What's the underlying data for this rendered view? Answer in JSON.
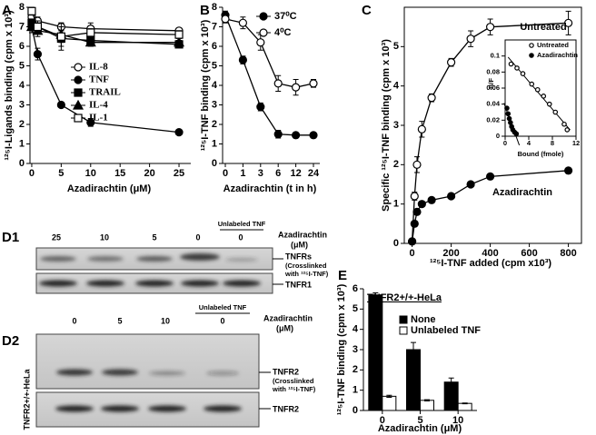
{
  "chart_data": [
    {
      "type": "line",
      "panel": "A",
      "y_label": "¹²⁵I-Ligands binding (cpm x 10³)",
      "x_label": "Azadirachtin (μM)",
      "x": [
        0,
        1,
        5,
        10,
        25
      ],
      "xlim": [
        -0.3,
        27
      ],
      "xticks": [
        0,
        5,
        10,
        15,
        20,
        25
      ],
      "ylim": [
        0,
        8
      ],
      "yticks": [
        0,
        1,
        2,
        3,
        4,
        5,
        6,
        7,
        8
      ],
      "legend": "center",
      "series": [
        {
          "name": "IL-8",
          "color": "#000000",
          "marker": "circle",
          "filled": false,
          "values": [
            7.5,
            7.3,
            7.0,
            6.9,
            6.8
          ],
          "errors": [
            0.3,
            0.2,
            0.2,
            0.3,
            0.1
          ]
        },
        {
          "name": "TNF",
          "color": "#000000",
          "marker": "circle",
          "filled": true,
          "values": [
            7.0,
            5.6,
            3.0,
            2.1,
            1.6
          ],
          "errors": [
            0.3,
            0.3,
            0.1,
            0.2,
            0.1
          ]
        },
        {
          "name": "TRAIL",
          "color": "#000000",
          "marker": "square",
          "filled": true,
          "values": [
            7.2,
            7.0,
            6.4,
            6.3,
            6.1
          ],
          "errors": [
            0.2,
            0.2,
            0.6,
            0.3,
            0.1
          ]
        },
        {
          "name": "IL-4",
          "color": "#000000",
          "marker": "triangle",
          "filled": true,
          "values": [
            7.0,
            6.8,
            6.6,
            6.2,
            6.2
          ],
          "errors": [
            0.2,
            0.3,
            0.6,
            0.2,
            0.1
          ]
        },
        {
          "name": "IL-1",
          "color": "#000000",
          "marker": "square",
          "filled": false,
          "values": [
            7.8,
            7.0,
            6.5,
            6.7,
            6.6
          ],
          "errors": [
            0.2,
            0.3,
            0.3,
            0.2,
            0.2
          ]
        }
      ]
    },
    {
      "type": "line",
      "panel": "B",
      "y_label": "¹²⁵I-TNF binding (cpm x 10³)",
      "x_label": "Azadirachtin (t in h)",
      "categories": [
        "0",
        "1",
        "3",
        "6",
        "12",
        "24"
      ],
      "ylim": [
        0,
        8
      ],
      "yticks": [
        0,
        1,
        2,
        3,
        4,
        5,
        6,
        7,
        8
      ],
      "legend": "top-right",
      "series": [
        {
          "name": "37⁰C",
          "color": "#000000",
          "marker": "circle",
          "filled": true,
          "values": [
            7.6,
            5.3,
            2.9,
            1.5,
            1.45,
            1.45
          ],
          "errors": [
            0.2,
            0.2,
            0.2,
            0.2,
            0.1,
            0.1
          ]
        },
        {
          "name": "4⁰C",
          "color": "#000000",
          "marker": "circle",
          "filled": false,
          "values": [
            7.4,
            7.2,
            6.2,
            4.1,
            3.9,
            4.1
          ],
          "errors": [
            0.2,
            0.3,
            0.4,
            0.4,
            0.4,
            0.2
          ]
        }
      ]
    },
    {
      "type": "line",
      "panel": "C",
      "y_label": "Specific ¹²⁵I-TNF binding (cpm x 10³)",
      "x_label": "¹²⁵I-TNF added (cpm x10³)",
      "x": [
        0,
        12.5,
        25,
        50,
        100,
        200,
        300,
        400,
        800
      ],
      "xlim": [
        -40,
        867
      ],
      "xticks": [
        0,
        200,
        400,
        600,
        800
      ],
      "ylim": [
        0,
        6
      ],
      "yticks": [
        0,
        1,
        2,
        3,
        4,
        5
      ],
      "annotations": [
        "Untreated",
        "Azadirachtin"
      ],
      "series": [
        {
          "name": "Untreated",
          "color": "#000000",
          "marker": "circle",
          "filled": false,
          "values": [
            0.05,
            1.2,
            2.0,
            2.9,
            3.7,
            4.6,
            5.2,
            5.5,
            5.6
          ],
          "errors": [
            0,
            0.1,
            0.2,
            0.2,
            0.1,
            0.1,
            0.2,
            0.2,
            0.3
          ]
        },
        {
          "name": "Azadirachtin",
          "color": "#000000",
          "marker": "circle",
          "filled": true,
          "values": [
            0.05,
            0.5,
            0.8,
            1.0,
            1.1,
            1.2,
            1.5,
            1.7,
            1.85
          ]
        }
      ]
    },
    {
      "type": "scatter",
      "y_label": "B/F",
      "x_label": "Bound (fmole)",
      "xlim": [
        0,
        12
      ],
      "xticks": [
        0,
        4,
        8,
        12
      ],
      "ylim": [
        0,
        0.12
      ],
      "yticks": [
        0,
        0.02,
        0.04,
        0.06,
        0.08,
        0.1
      ],
      "legend": "top-right",
      "trendline": true,
      "series": [
        {
          "name": "Untreated",
          "color": "#000000",
          "marker": "circle",
          "filled": false,
          "x": [
            1,
            2,
            3,
            4.5,
            5.5,
            6.5,
            7.5,
            8.5,
            10,
            10.5
          ],
          "values": [
            0.09,
            0.085,
            0.078,
            0.065,
            0.058,
            0.05,
            0.04,
            0.03,
            0.015,
            0.008
          ]
        },
        {
          "name": "Azadirachtin",
          "color": "#000000",
          "marker": "circle",
          "filled": true,
          "x": [
            0.3,
            0.5,
            0.7,
            0.9,
            1.1,
            1.3,
            1.6,
            1.9
          ],
          "values": [
            0.035,
            0.028,
            0.022,
            0.017,
            0.012,
            0.008,
            0.005,
            0.003
          ]
        }
      ]
    },
    {
      "type": "bar",
      "panel": "E",
      "title": "TNFR2+/+-HeLa",
      "y_label": "¹²⁵I-TNF binding (cpm x 10³)",
      "x_label": "Azadirachtin (μM)",
      "categories": [
        "0",
        "5",
        "10"
      ],
      "ylim": [
        0,
        6
      ],
      "yticks": [
        0,
        1,
        2,
        3,
        4,
        5,
        6
      ],
      "legend": "top-right",
      "series": [
        {
          "name": "None",
          "color": "#000000",
          "values": [
            5.7,
            3.0,
            1.4
          ],
          "errors": [
            0.1,
            0.35,
            0.2
          ]
        },
        {
          "name": "Unlabeled TNF",
          "color": "#ffffff",
          "values": [
            0.7,
            0.5,
            0.35
          ],
          "errors": [
            0.05,
            0.03,
            0.02
          ]
        }
      ]
    }
  ],
  "blots": [
    {
      "panel": "D1",
      "lanes": [
        "25",
        "10",
        "5",
        "0",
        "0"
      ],
      "group_label": "Unlabeled TNF",
      "treatment": [
        "Azadirachtin",
        "(μM)"
      ],
      "bands": [
        {
          "label": "TNFRs",
          "note": [
            "(Crosslinked",
            "with ¹²⁵I-TNF)"
          ]
        },
        {
          "label": "TNFR1"
        }
      ]
    },
    {
      "panel": "D2",
      "side_label": "TNFR2+/+-HeLa",
      "lanes": [
        "0",
        "5",
        "10",
        "0"
      ],
      "group_label": "Unlabeled TNF",
      "treatment": [
        "Azadirachtin",
        "(μM)"
      ],
      "bands": [
        {
          "label": "TNFR2",
          "note": [
            "(Crosslinked",
            "with ¹²⁵I-TNF)"
          ]
        },
        {
          "label": "TNFR2"
        }
      ]
    }
  ]
}
